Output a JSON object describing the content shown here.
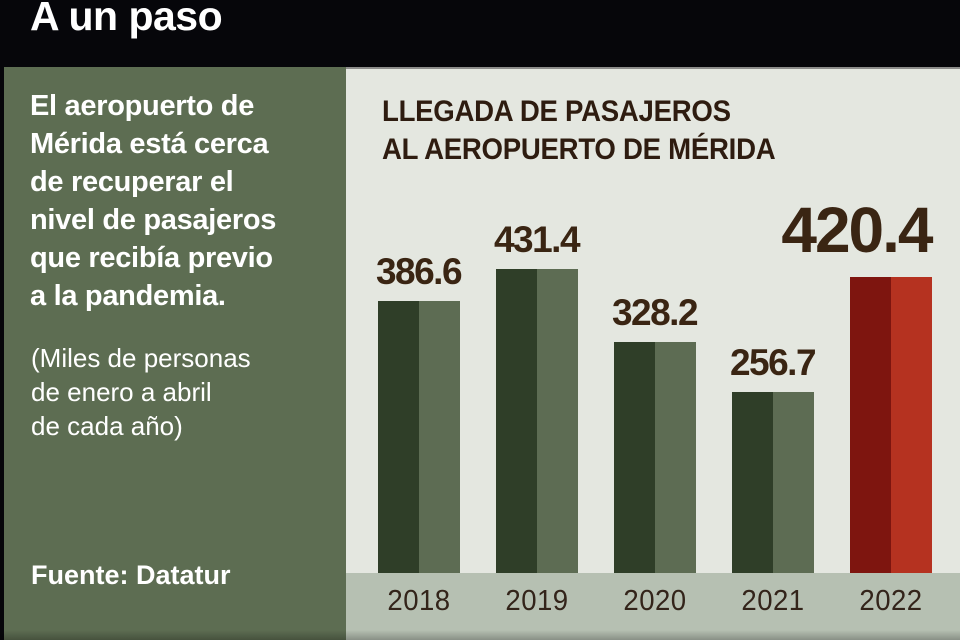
{
  "header": {
    "title": "A un paso"
  },
  "sidebar": {
    "description": "El aeropuerto de\nMérida está cerca\nde recuperar el\nnivel de pasajeros\nque recibía previo\na la pandemia.",
    "note": "(Miles de personas\nde enero a abril\nde cada año)",
    "source": "Fuente: Datatur"
  },
  "palette": {
    "header_bg": "#06060a",
    "sidebar_green": "#5d6d52",
    "panel_bg": "#e4e7e0",
    "axis_band": "#b6c0b2",
    "label_brown": "#3a2513"
  },
  "chart_data": {
    "type": "bar",
    "title": "LLEGADA DE PASAJEROS\nAL AEROPUERTO DE MÉRIDA",
    "categories": [
      "2018",
      "2019",
      "2020",
      "2021",
      "2022"
    ],
    "values": [
      386.6,
      431.4,
      328.2,
      256.7,
      420.4
    ],
    "highlight_index": 4,
    "ylim": [
      0,
      440
    ],
    "grid": false,
    "legend": false,
    "colors": {
      "normal": {
        "dark": "#2f3e28",
        "light": "#5d6c53"
      },
      "highlight": {
        "dark": "#7e150f",
        "light": "#b53220"
      }
    }
  }
}
